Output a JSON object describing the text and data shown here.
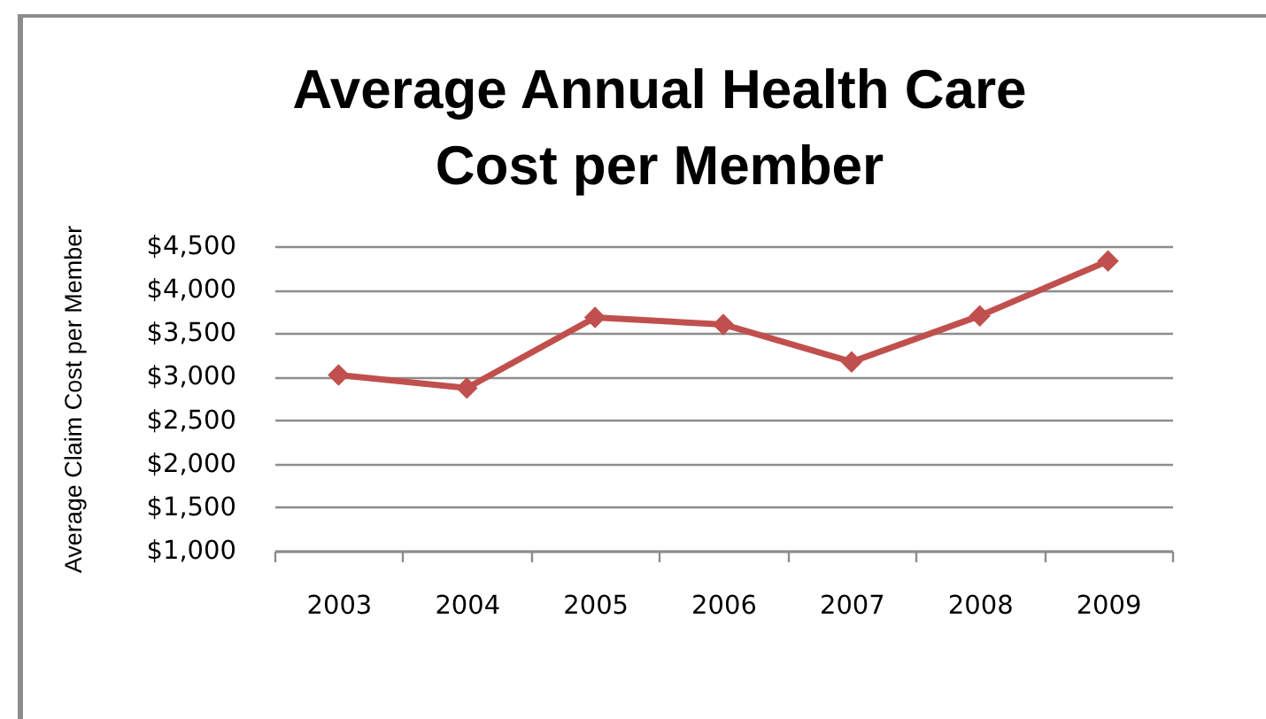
{
  "chart_data": {
    "type": "line",
    "title": "Average Annual Health Care Cost per Member",
    "ylabel": "Average Claim Cost per Member",
    "categories": [
      "2003",
      "2004",
      "2005",
      "2006",
      "2007",
      "2008",
      "2009"
    ],
    "series": [
      {
        "color": "#c0504d",
        "values": [
          3020,
          2870,
          3680,
          3600,
          3170,
          3700,
          4330
        ]
      }
    ],
    "ylim": [
      1000,
      4500
    ],
    "yticks": [
      {
        "value": 1000,
        "label": "$1,000"
      },
      {
        "value": 1500,
        "label": "$1,500"
      },
      {
        "value": 2000,
        "label": "$2,000"
      },
      {
        "value": 2500,
        "label": "$2,500"
      },
      {
        "value": 3000,
        "label": "$3,000"
      },
      {
        "value": 3500,
        "label": "$3,500"
      },
      {
        "value": 4000,
        "label": "$4,000"
      },
      {
        "value": 4500,
        "label": "$4,500"
      }
    ],
    "grid": "y",
    "marker": "diamond",
    "line_style": "solid"
  }
}
